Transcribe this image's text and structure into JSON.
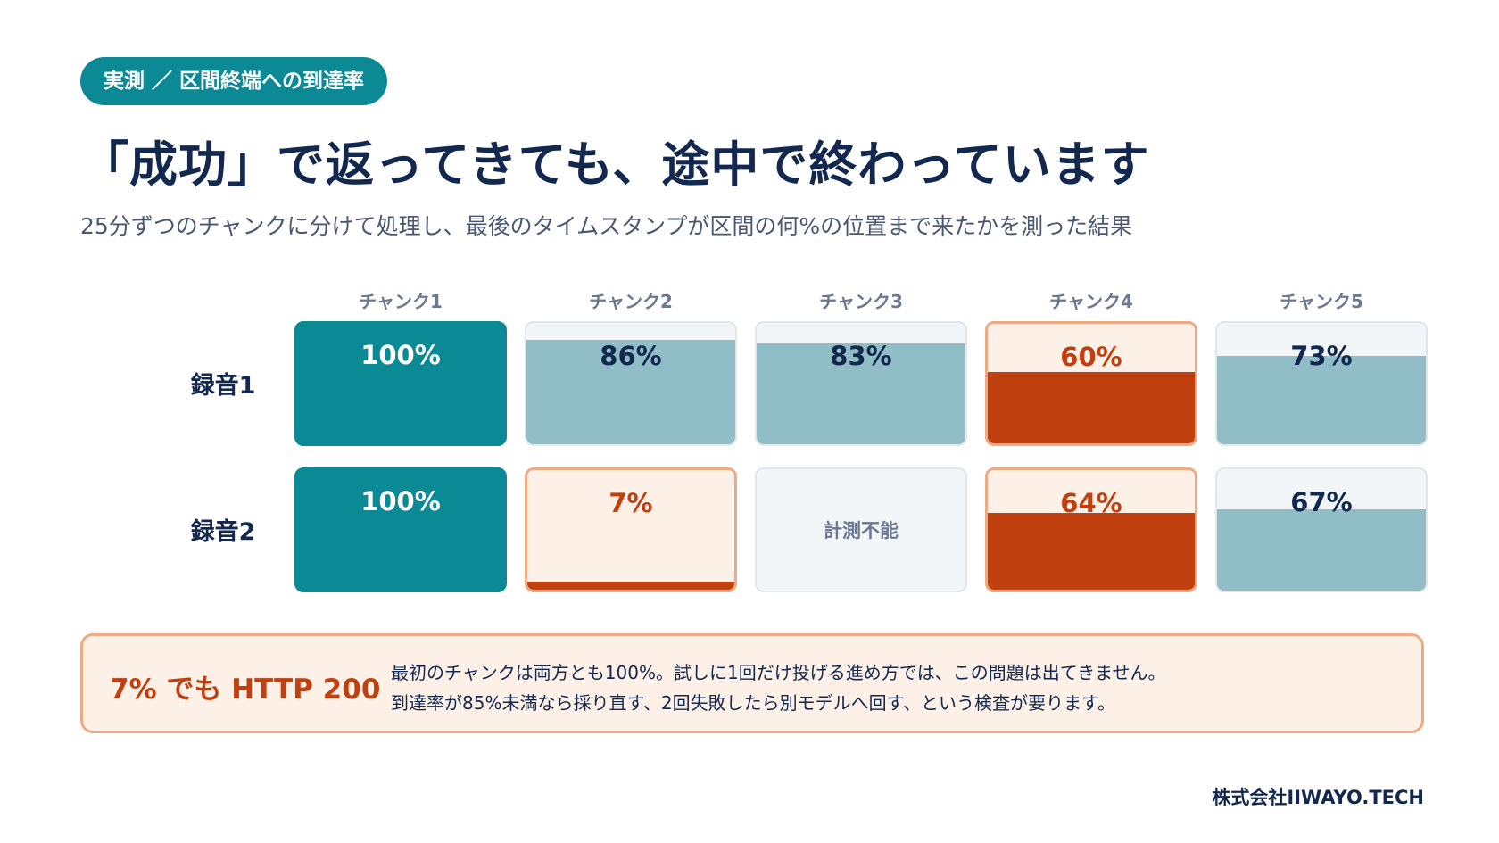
{
  "badge": "実測 ／ 区間終端への到達率",
  "title": "「成功」で返ってきても、途中で終わっています",
  "subtitle": "25分ずつのチャンクに分けて処理し、最後のタイムスタンプが区間の何%の位置まで来たかを測った結果",
  "chart_data": {
    "type": "heatmap",
    "columns": [
      "チャンク1",
      "チャンク2",
      "チャンク3",
      "チャンク4",
      "チャンク5"
    ],
    "rows": [
      {
        "label": "録音1",
        "cells": [
          {
            "value": 100,
            "display": "100%",
            "status": "full"
          },
          {
            "value": 86,
            "display": "86%",
            "status": "mid"
          },
          {
            "value": 83,
            "display": "83%",
            "status": "mid"
          },
          {
            "value": 60,
            "display": "60%",
            "status": "low"
          },
          {
            "value": 73,
            "display": "73%",
            "status": "mid"
          }
        ]
      },
      {
        "label": "録音2",
        "cells": [
          {
            "value": 100,
            "display": "100%",
            "status": "full"
          },
          {
            "value": 7,
            "display": "7%",
            "status": "low"
          },
          {
            "value": null,
            "display": "計測不能",
            "status": "na"
          },
          {
            "value": 64,
            "display": "64%",
            "status": "low"
          },
          {
            "value": 67,
            "display": "67%",
            "status": "mid"
          }
        ]
      }
    ],
    "colors": {
      "full": "#0b8a96",
      "mid": "#91bec6",
      "low": "#c0400f",
      "low_background": "#fdf0e7",
      "empty_background": "#f2f6f9"
    }
  },
  "callout": {
    "heading": "7% でも HTTP 200",
    "lines": [
      "最初のチャンクは両方とも100%。試しに1回だけ投げる進め方では、この問題は出てきません。",
      "到達率が85%未満なら採り直す、2回失敗したら別モデルへ回す、という検査が要ります。"
    ]
  },
  "footer": "株式会社IIWAYO.TECH"
}
